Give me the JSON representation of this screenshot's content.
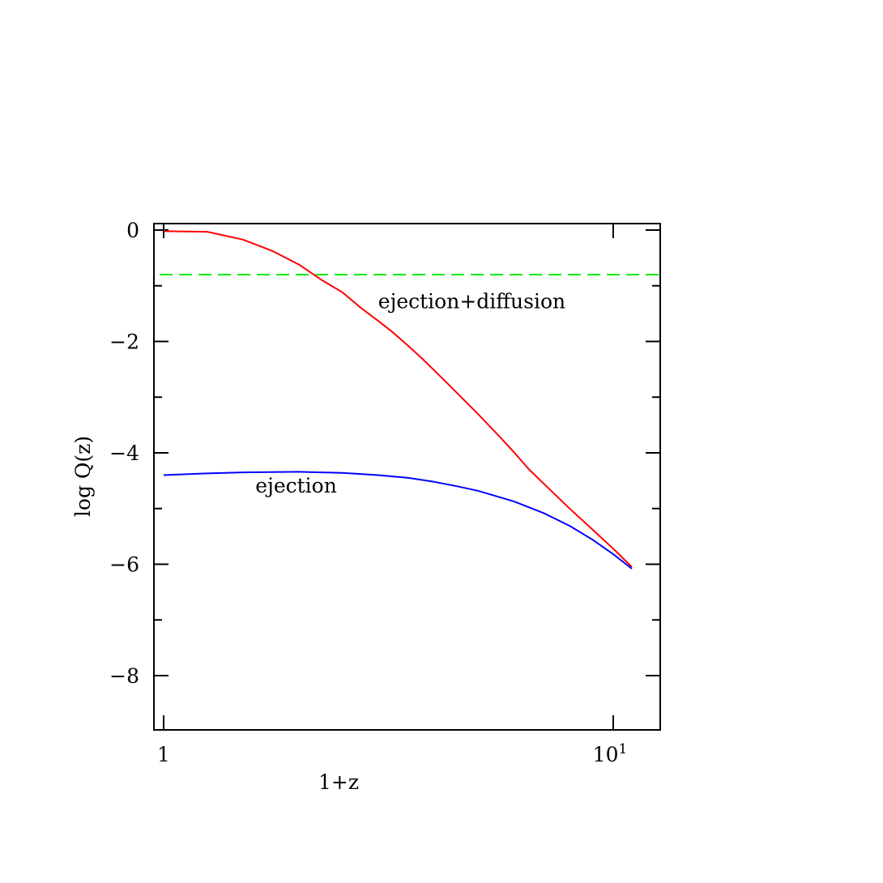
{
  "chart_data": {
    "type": "line",
    "xlabel": "1+z",
    "ylabel": "log Q(z)",
    "xscale": "log",
    "xlim": [
      0.98,
      13
    ],
    "ylim": [
      -9,
      0.1
    ],
    "grid": false,
    "x_ticks": [
      {
        "value": 1,
        "label": "1"
      },
      {
        "value": 10,
        "label": "10",
        "sup": "1"
      }
    ],
    "y_ticks": [
      {
        "value": 0,
        "label": "0"
      },
      {
        "value": -2,
        "label": "−2"
      },
      {
        "value": -4,
        "label": "−4"
      },
      {
        "value": -6,
        "label": "−6"
      },
      {
        "value": -8,
        "label": "−8"
      }
    ],
    "series": [
      {
        "color": "#ff0000",
        "style": "solid",
        "x": [
          1.0,
          1.25,
          1.5,
          1.75,
          2.0,
          2.25,
          2.5,
          2.75,
          3.0,
          3.25,
          3.5,
          3.75,
          4.0,
          4.25,
          4.5,
          5.0,
          5.5,
          6.0,
          6.5,
          7.0,
          8.0,
          9.0,
          10.0,
          11.0
        ],
        "y": [
          -0.02,
          -0.03,
          -0.17,
          -0.38,
          -0.62,
          -0.9,
          -1.12,
          -1.4,
          -1.63,
          -1.85,
          -2.08,
          -2.3,
          -2.52,
          -2.73,
          -2.93,
          -3.3,
          -3.65,
          -3.98,
          -4.3,
          -4.55,
          -5.0,
          -5.38,
          -5.72,
          -6.05
        ]
      },
      {
        "color": "#0000ff",
        "style": "solid",
        "x": [
          1.0,
          1.25,
          1.5,
          2.0,
          2.5,
          3.0,
          3.5,
          4.0,
          4.5,
          5.0,
          6.0,
          7.0,
          8.0,
          9.0,
          10.0,
          11.0
        ],
        "y": [
          -4.4,
          -4.37,
          -4.35,
          -4.34,
          -4.36,
          -4.4,
          -4.45,
          -4.52,
          -4.6,
          -4.68,
          -4.87,
          -5.08,
          -5.31,
          -5.56,
          -5.82,
          -6.08
        ]
      },
      {
        "color": "#00ee00",
        "style": "dashed",
        "x": [
          0.98,
          13
        ],
        "y": [
          -0.8,
          -0.8
        ]
      }
    ],
    "annotations": [
      {
        "text": "ejection+diffusion",
        "x": 3.0,
        "y": -1.4
      },
      {
        "text": "ejection",
        "x": 1.6,
        "y": -4.71
      }
    ]
  }
}
